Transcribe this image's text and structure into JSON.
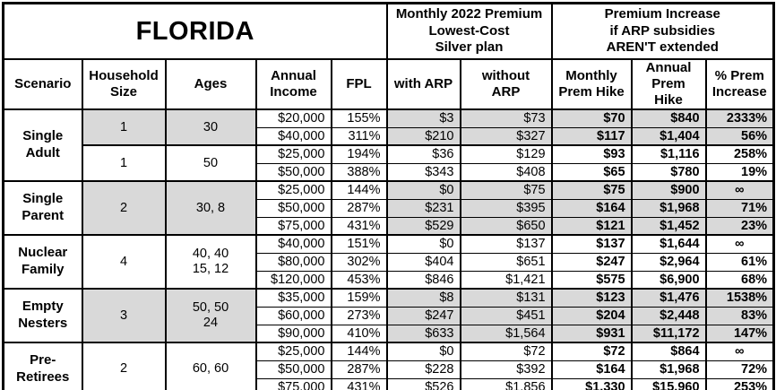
{
  "title": "FLORIDA",
  "colors": {
    "shaded_row_bg": "#d9d9d9",
    "border": "#000000",
    "background": "#ffffff"
  },
  "header": {
    "premium_section": "Monthly 2022 Premium\nLowest-Cost\nSilver plan",
    "increase_section": "Premium Increase\nif ARP subsidies\nAREN'T extended",
    "columns": [
      "Scenario",
      "Household\nSize",
      "Ages",
      "Annual\nIncome",
      "FPL",
      "with ARP",
      "without ARP",
      "Monthly\nPrem Hike",
      "Annual\nPrem Hike",
      "% Prem\nIncrease"
    ]
  },
  "groups": [
    {
      "scenario": "Single\nAdult",
      "subgroups": [
        {
          "household": "1",
          "ages": "30",
          "shaded": true,
          "rows": [
            [
              "$20,000",
              "155%",
              "$3",
              "$73",
              "$70",
              "$840",
              "2333%"
            ],
            [
              "$40,000",
              "311%",
              "$210",
              "$327",
              "$117",
              "$1,404",
              "56%"
            ]
          ]
        },
        {
          "household": "1",
          "ages": "50",
          "shaded": false,
          "rows": [
            [
              "$25,000",
              "194%",
              "$36",
              "$129",
              "$93",
              "$1,116",
              "258%"
            ],
            [
              "$50,000",
              "388%",
              "$343",
              "$408",
              "$65",
              "$780",
              "19%"
            ]
          ]
        }
      ]
    },
    {
      "scenario": "Single\nParent",
      "subgroups": [
        {
          "household": "2",
          "ages": "30, 8",
          "shaded": true,
          "rows": [
            [
              "$25,000",
              "144%",
              "$0",
              "$75",
              "$75",
              "$900",
              "∞"
            ],
            [
              "$50,000",
              "287%",
              "$231",
              "$395",
              "$164",
              "$1,968",
              "71%"
            ],
            [
              "$75,000",
              "431%",
              "$529",
              "$650",
              "$121",
              "$1,452",
              "23%"
            ]
          ]
        }
      ]
    },
    {
      "scenario": "Nuclear\nFamily",
      "subgroups": [
        {
          "household": "4",
          "ages": "40, 40\n15, 12",
          "shaded": false,
          "rows": [
            [
              "$40,000",
              "151%",
              "$0",
              "$137",
              "$137",
              "$1,644",
              "∞"
            ],
            [
              "$80,000",
              "302%",
              "$404",
              "$651",
              "$247",
              "$2,964",
              "61%"
            ],
            [
              "$120,000",
              "453%",
              "$846",
              "$1,421",
              "$575",
              "$6,900",
              "68%"
            ]
          ]
        }
      ]
    },
    {
      "scenario": "Empty\nNesters",
      "subgroups": [
        {
          "household": "3",
          "ages": "50, 50\n24",
          "shaded": true,
          "rows": [
            [
              "$35,000",
              "159%",
              "$8",
              "$131",
              "$123",
              "$1,476",
              "1538%"
            ],
            [
              "$60,000",
              "273%",
              "$247",
              "$451",
              "$204",
              "$2,448",
              "83%"
            ],
            [
              "$90,000",
              "410%",
              "$633",
              "$1,564",
              "$931",
              "$11,172",
              "147%"
            ]
          ]
        }
      ]
    },
    {
      "scenario": "Pre-\nRetirees",
      "subgroups": [
        {
          "household": "2",
          "ages": "60, 60",
          "shaded": false,
          "rows": [
            [
              "$25,000",
              "144%",
              "$0",
              "$72",
              "$72",
              "$864",
              "∞"
            ],
            [
              "$50,000",
              "287%",
              "$228",
              "$392",
              "$164",
              "$1,968",
              "72%"
            ],
            [
              "$75,000",
              "431%",
              "$526",
              "$1,856",
              "$1,330",
              "$15,960",
              "253%"
            ]
          ]
        }
      ]
    }
  ],
  "chart_data": {
    "type": "table",
    "title": "FLORIDA",
    "section_headers": [
      "Monthly 2022 Premium Lowest-Cost Silver plan",
      "Premium Increase if ARP subsidies AREN'T extended"
    ],
    "columns": [
      "Scenario",
      "Household Size",
      "Ages",
      "Annual Income",
      "FPL",
      "with ARP",
      "without ARP",
      "Monthly Prem Hike",
      "Annual Prem Hike",
      "% Prem Increase"
    ],
    "rows": [
      [
        "Single Adult",
        "1",
        "30",
        "$20,000",
        "155%",
        "$3",
        "$73",
        "$70",
        "$840",
        "2333%"
      ],
      [
        "Single Adult",
        "1",
        "30",
        "$40,000",
        "311%",
        "$210",
        "$327",
        "$117",
        "$1,404",
        "56%"
      ],
      [
        "Single Adult",
        "1",
        "50",
        "$25,000",
        "194%",
        "$36",
        "$129",
        "$93",
        "$1,116",
        "258%"
      ],
      [
        "Single Adult",
        "1",
        "50",
        "$50,000",
        "388%",
        "$343",
        "$408",
        "$65",
        "$780",
        "19%"
      ],
      [
        "Single Parent",
        "2",
        "30, 8",
        "$25,000",
        "144%",
        "$0",
        "$75",
        "$75",
        "$900",
        "∞"
      ],
      [
        "Single Parent",
        "2",
        "30, 8",
        "$50,000",
        "287%",
        "$231",
        "$395",
        "$164",
        "$1,968",
        "71%"
      ],
      [
        "Single Parent",
        "2",
        "30, 8",
        "$75,000",
        "431%",
        "$529",
        "$650",
        "$121",
        "$1,452",
        "23%"
      ],
      [
        "Nuclear Family",
        "4",
        "40, 40, 15, 12",
        "$40,000",
        "151%",
        "$0",
        "$137",
        "$137",
        "$1,644",
        "∞"
      ],
      [
        "Nuclear Family",
        "4",
        "40, 40, 15, 12",
        "$80,000",
        "302%",
        "$404",
        "$651",
        "$247",
        "$2,964",
        "61%"
      ],
      [
        "Nuclear Family",
        "4",
        "40, 40, 15, 12",
        "$120,000",
        "453%",
        "$846",
        "$1,421",
        "$575",
        "$6,900",
        "68%"
      ],
      [
        "Empty Nesters",
        "3",
        "50, 50, 24",
        "$35,000",
        "159%",
        "$8",
        "$131",
        "$123",
        "$1,476",
        "1538%"
      ],
      [
        "Empty Nesters",
        "3",
        "50, 50, 24",
        "$60,000",
        "273%",
        "$247",
        "$451",
        "$204",
        "$2,448",
        "83%"
      ],
      [
        "Empty Nesters",
        "3",
        "50, 50, 24",
        "$90,000",
        "410%",
        "$633",
        "$1,564",
        "$931",
        "$11,172",
        "147%"
      ],
      [
        "Pre-Retirees",
        "2",
        "60, 60",
        "$25,000",
        "144%",
        "$0",
        "$72",
        "$72",
        "$864",
        "∞"
      ],
      [
        "Pre-Retirees",
        "2",
        "60, 60",
        "$50,000",
        "287%",
        "$228",
        "$392",
        "$164",
        "$1,968",
        "72%"
      ],
      [
        "Pre-Retirees",
        "2",
        "60, 60",
        "$75,000",
        "431%",
        "$526",
        "$1,856",
        "$1,330",
        "$15,960",
        "253%"
      ]
    ]
  }
}
